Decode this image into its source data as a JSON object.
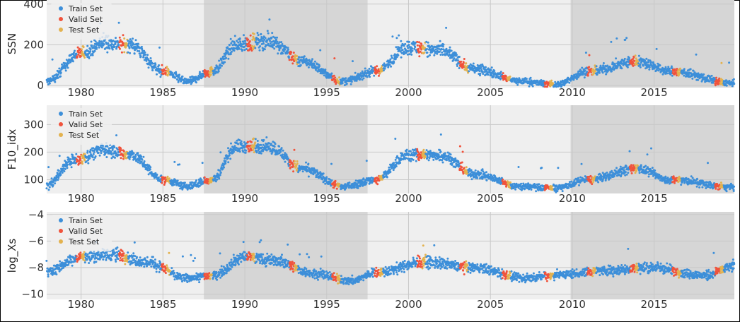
{
  "chart_data": [
    {
      "type": "scatter",
      "ylabel": "SSN",
      "ylim": [
        -10,
        420
      ],
      "yticks": [
        0,
        200,
        400
      ],
      "xlim": [
        1977.9,
        2019.9
      ],
      "xticks": [
        1980,
        1985,
        1990,
        1995,
        2000,
        2005,
        2010,
        2015
      ],
      "grid": true,
      "legend_position": "top-left",
      "series": [
        {
          "name": "Train Set",
          "color": "#3d8fd9"
        },
        {
          "name": "Valid Set",
          "color": "#f0533c"
        },
        {
          "name": "Test Set",
          "color": "#e3b24f"
        }
      ],
      "cycle_envelope": {
        "low": 5,
        "high": 230,
        "spread": 60,
        "anchors": [
          [
            1977.9,
            20
          ],
          [
            1980,
            160
          ],
          [
            1981.5,
            210
          ],
          [
            1983,
            200
          ],
          [
            1985,
            70
          ],
          [
            1986.5,
            20
          ],
          [
            1988,
            70
          ],
          [
            1989.5,
            200
          ],
          [
            1991.5,
            220
          ],
          [
            1993.5,
            120
          ],
          [
            1996,
            20
          ],
          [
            1998,
            70
          ],
          [
            2000,
            190
          ],
          [
            2002,
            170
          ],
          [
            2004,
            80
          ],
          [
            2007,
            20
          ],
          [
            2009,
            5
          ],
          [
            2011,
            70
          ],
          [
            2014,
            120
          ],
          [
            2016,
            70
          ],
          [
            2019.9,
            10
          ]
        ]
      }
    },
    {
      "type": "scatter",
      "ylabel": "F10_idx",
      "ylim": [
        50,
        370
      ],
      "yticks": [
        100,
        200,
        300
      ],
      "xlim": [
        1977.9,
        2019.9
      ],
      "xticks": [
        1980,
        1985,
        1990,
        1995,
        2000,
        2005,
        2010,
        2015
      ],
      "grid": true,
      "legend_position": "top-left",
      "series": [
        {
          "name": "Train Set",
          "color": "#3d8fd9"
        },
        {
          "name": "Valid Set",
          "color": "#f0533c"
        },
        {
          "name": "Test Set",
          "color": "#e3b24f"
        }
      ],
      "cycle_envelope": {
        "low": 70,
        "high": 280,
        "spread": 45,
        "anchors": [
          [
            1977.9,
            80
          ],
          [
            1979.5,
            170
          ],
          [
            1981.5,
            210
          ],
          [
            1983,
            190
          ],
          [
            1985,
            100
          ],
          [
            1986.5,
            75
          ],
          [
            1988,
            100
          ],
          [
            1989.5,
            220
          ],
          [
            1991.5,
            220
          ],
          [
            1993.5,
            140
          ],
          [
            1996,
            75
          ],
          [
            1998,
            100
          ],
          [
            2000,
            190
          ],
          [
            2002,
            190
          ],
          [
            2004,
            120
          ],
          [
            2007,
            75
          ],
          [
            2009,
            70
          ],
          [
            2011,
            100
          ],
          [
            2014,
            140
          ],
          [
            2016,
            100
          ],
          [
            2019.9,
            72
          ]
        ]
      }
    },
    {
      "type": "scatter",
      "ylabel": "log_Xs",
      "ylim": [
        -10.4,
        -3.8
      ],
      "yticks": [
        -10,
        -8,
        -6,
        -4
      ],
      "xlim": [
        1977.9,
        2019.9
      ],
      "xticks": [
        1980,
        1985,
        1990,
        1995,
        2000,
        2005,
        2010,
        2015
      ],
      "grid": true,
      "legend_position": "top-left",
      "series": [
        {
          "name": "Train Set",
          "color": "#3d8fd9"
        },
        {
          "name": "Valid Set",
          "color": "#f0533c"
        },
        {
          "name": "Test Set",
          "color": "#e3b24f"
        }
      ],
      "cycle_envelope": {
        "low": -9.6,
        "high": -5.5,
        "spread": 0.9,
        "anchors": [
          [
            1977.9,
            -8.3
          ],
          [
            1980,
            -7.2
          ],
          [
            1982,
            -7.0
          ],
          [
            1984,
            -7.6
          ],
          [
            1986.5,
            -8.8
          ],
          [
            1988,
            -8.6
          ],
          [
            1990,
            -7.2
          ],
          [
            1992,
            -7.5
          ],
          [
            1994,
            -8.4
          ],
          [
            1996.5,
            -9.0
          ],
          [
            1998,
            -8.4
          ],
          [
            2001,
            -7.6
          ],
          [
            2004,
            -8.0
          ],
          [
            2007,
            -8.8
          ],
          [
            2009.5,
            -8.5
          ],
          [
            2012,
            -8.2
          ],
          [
            2015,
            -8.0
          ],
          [
            2018,
            -8.6
          ],
          [
            2019.9,
            -7.9
          ]
        ]
      }
    }
  ],
  "shaded_bands": [
    [
      1987.5,
      1997.5
    ],
    [
      2009.9,
      2019.9
    ]
  ]
}
